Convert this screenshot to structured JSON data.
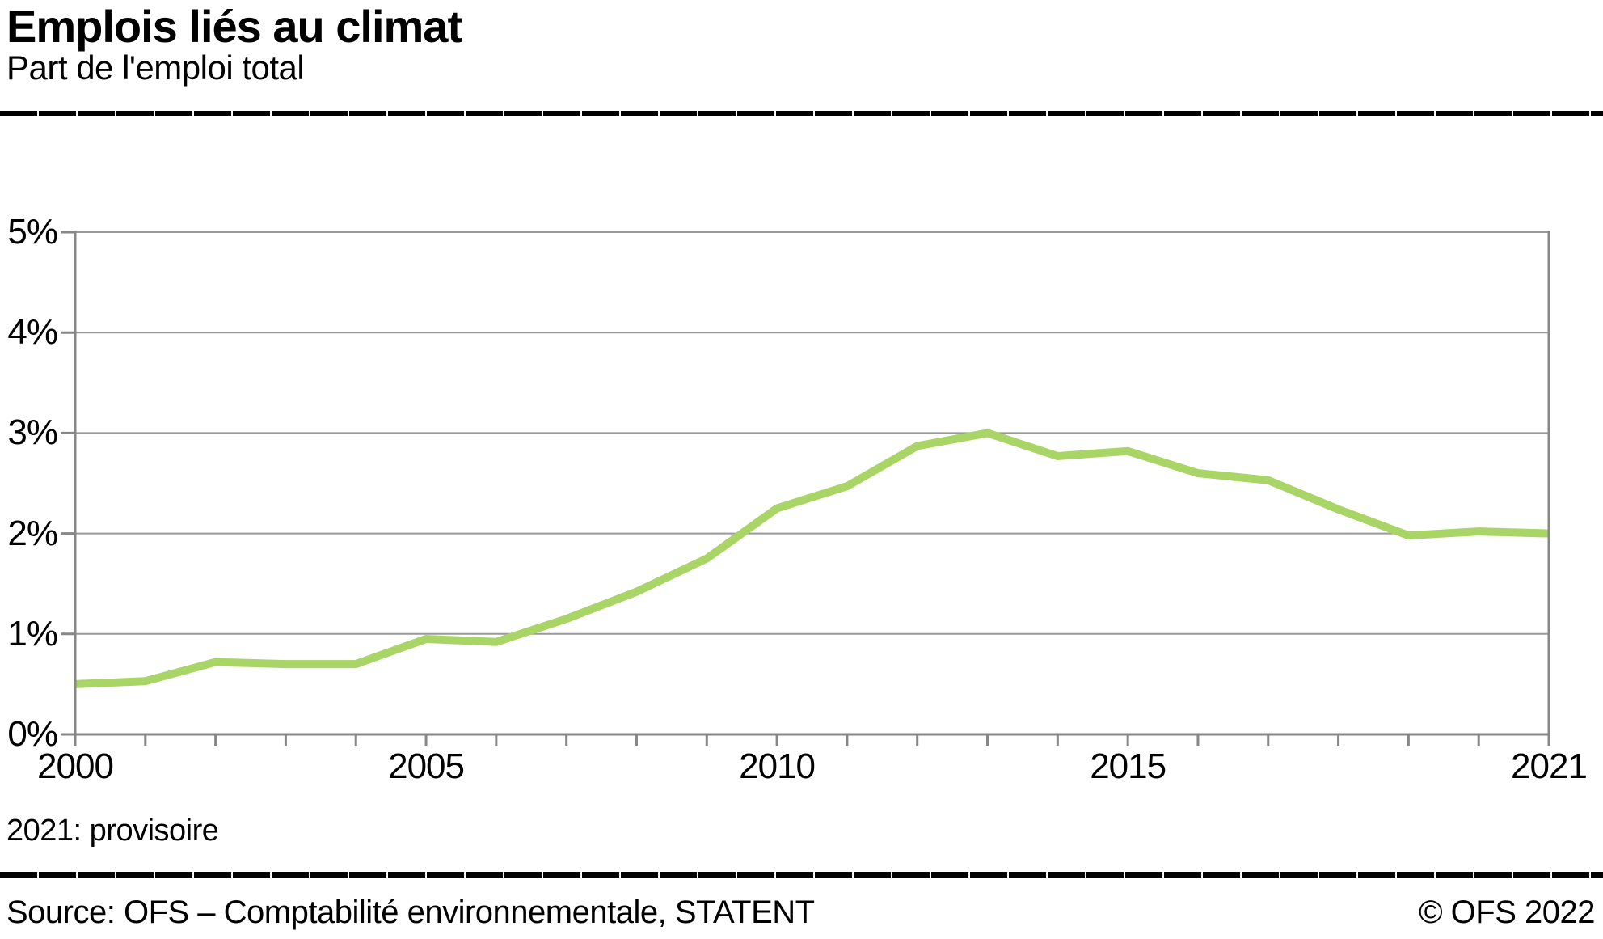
{
  "header": {
    "title": "Emplois liés au climat",
    "subtitle": "Part de l'emploi total"
  },
  "footnote": {
    "text": "2021: provisoire"
  },
  "footer": {
    "source": "Source: OFS – Comptabilité environnementale, STATENT",
    "copyright": "© OFS 2022"
  },
  "colors": {
    "line": "#a9d566",
    "grid": "#999999",
    "axis": "#878787",
    "text": "#000000",
    "rule": "#000000"
  },
  "chart_data": {
    "type": "line",
    "title": "Emplois liés au climat",
    "subtitle": "Part de l'emploi total",
    "series_name": "Part de l'emploi total",
    "x": [
      2000,
      2001,
      2002,
      2003,
      2004,
      2005,
      2006,
      2007,
      2008,
      2009,
      2010,
      2011,
      2012,
      2013,
      2014,
      2015,
      2016,
      2017,
      2018,
      2019,
      2020,
      2021
    ],
    "values_pct": [
      0.5,
      0.53,
      0.72,
      0.7,
      0.7,
      0.95,
      0.92,
      1.15,
      1.42,
      1.75,
      2.25,
      2.47,
      2.87,
      3.0,
      2.77,
      2.82,
      2.6,
      2.53,
      2.24,
      1.98,
      2.02,
      2.0
    ],
    "ylim": [
      0,
      5
    ],
    "y_ticks": [
      0,
      1,
      2,
      3,
      4,
      5
    ],
    "y_tick_labels": [
      "0%",
      "1%",
      "2%",
      "3%",
      "4%",
      "5%"
    ],
    "x_labeled_ticks": [
      2000,
      2005,
      2010,
      2015,
      2021
    ],
    "x_minor_ticks": "every year 2000-2021",
    "xlabel": "",
    "ylabel": "",
    "grid": "horizontal gridlines each 1%, plot box bordered left/bottom/right",
    "legend": "none",
    "note_2021": "provisional value"
  }
}
